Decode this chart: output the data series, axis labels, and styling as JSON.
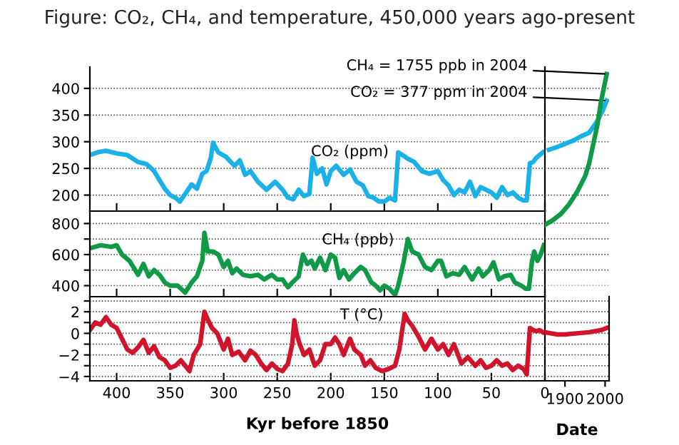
{
  "chart_data": [
    {
      "type": "line",
      "title": "Figure: CO₂, CH₄, and temperature, 450,000 years ago-present",
      "annotations": [
        "CO₂ (ppm)"
      ],
      "x": [
        425,
        418,
        410,
        400,
        390,
        380,
        372,
        365,
        360,
        355,
        350,
        345,
        341,
        335,
        330,
        325,
        320,
        316,
        312,
        310,
        305,
        298,
        290,
        285,
        280,
        275,
        268,
        260,
        252,
        245,
        240,
        235,
        230,
        225,
        220,
        217,
        213,
        208,
        204,
        200,
        195,
        188,
        182,
        176,
        170,
        165,
        160,
        155,
        150,
        145,
        140,
        137,
        133,
        128,
        122,
        115,
        108,
        100,
        95,
        90,
        85,
        80,
        75,
        70,
        65,
        60,
        55,
        50,
        45,
        40,
        35,
        30,
        25,
        20,
        17,
        14,
        11,
        8,
        5,
        2
      ],
      "series": [
        {
          "color": "#1ab0e8",
          "values": [
            275,
            280,
            283,
            278,
            275,
            262,
            258,
            245,
            228,
            212,
            200,
            195,
            188,
            205,
            220,
            212,
            240,
            245,
            270,
            298,
            280,
            272,
            255,
            265,
            238,
            245,
            225,
            210,
            225,
            210,
            195,
            192,
            210,
            198,
            202,
            270,
            240,
            250,
            220,
            245,
            255,
            238,
            248,
            225,
            218,
            198,
            195,
            188,
            188,
            195,
            190,
            280,
            275,
            268,
            262,
            245,
            240,
            245,
            228,
            218,
            200,
            210,
            205,
            225,
            198,
            215,
            210,
            205,
            195,
            215,
            200,
            205,
            195,
            190,
            190,
            260,
            262,
            270,
            275,
            280
          ]
        }
      ],
      "xlim": [
        425,
        0
      ],
      "xticks": [
        {
          "value": 400,
          "label": null
        },
        {
          "value": 350,
          "label": null
        },
        {
          "value": 300,
          "label": null
        },
        {
          "value": 250,
          "label": null
        },
        {
          "value": 200,
          "label": null
        },
        {
          "value": 150,
          "label": null
        },
        {
          "value": 100,
          "label": null
        },
        {
          "value": 50,
          "label": null
        },
        {
          "value": 0,
          "label": null
        }
      ],
      "ylim": [
        170,
        440
      ],
      "yticks": [
        200,
        250,
        300,
        350,
        400
      ],
      "grid": "y",
      "tick_labels": "y"
    },
    {
      "type": "line",
      "x": [
        1860,
        1880,
        1900,
        1920,
        1940,
        1960,
        1980,
        1995,
        2004
      ],
      "series": [
        {
          "color": "#1ab0e8",
          "values": [
            285,
            290,
            296,
            302,
            310,
            317,
            338,
            360,
            377
          ]
        }
      ],
      "annotations": [
        {
          "text": "CO₂ = 377 ppm in 2004",
          "x": 2004,
          "y": 377
        }
      ],
      "xlim": [
        1850,
        2010
      ],
      "ylim": [
        170,
        440
      ],
      "yticks": [
        200,
        250,
        300,
        350,
        400
      ],
      "grid": "y",
      "tick_labels": false
    },
    {
      "type": "line",
      "annotations": [
        "CH₄ (ppb)"
      ],
      "x": [
        425,
        415,
        405,
        400,
        395,
        388,
        380,
        375,
        370,
        365,
        360,
        355,
        350,
        343,
        336,
        330,
        325,
        322,
        320,
        318,
        315,
        310,
        305,
        300,
        296,
        292,
        288,
        282,
        275,
        268,
        262,
        255,
        250,
        245,
        240,
        236,
        230,
        226,
        222,
        218,
        215,
        210,
        205,
        200,
        196,
        192,
        188,
        183,
        178,
        172,
        168,
        162,
        158,
        154,
        150,
        145,
        140,
        137,
        132,
        128,
        124,
        118,
        112,
        106,
        100,
        97,
        92,
        86,
        80,
        75,
        68,
        62,
        58,
        52,
        48,
        43,
        38,
        32,
        28,
        22,
        18,
        15,
        12,
        10,
        7,
        4,
        1
      ],
      "series": [
        {
          "color": "#0f9a48",
          "values": [
            640,
            660,
            650,
            660,
            600,
            560,
            470,
            540,
            460,
            500,
            470,
            420,
            400,
            400,
            355,
            420,
            460,
            520,
            560,
            740,
            620,
            620,
            600,
            520,
            560,
            480,
            510,
            470,
            460,
            470,
            440,
            470,
            440,
            440,
            390,
            420,
            460,
            600,
            540,
            560,
            510,
            580,
            500,
            600,
            580,
            450,
            500,
            440,
            480,
            520,
            500,
            420,
            400,
            370,
            400,
            380,
            340,
            400,
            550,
            700,
            620,
            600,
            520,
            500,
            560,
            560,
            460,
            480,
            470,
            520,
            440,
            510,
            460,
            500,
            550,
            440,
            460,
            470,
            420,
            400,
            380,
            380,
            560,
            620,
            560,
            600,
            660
          ]
        }
      ],
      "xlim": [
        425,
        0
      ],
      "xticks": [
        {
          "value": 400,
          "label": null
        },
        {
          "value": 350,
          "label": null
        },
        {
          "value": 300,
          "label": null
        },
        {
          "value": 250,
          "label": null
        },
        {
          "value": 200,
          "label": null
        },
        {
          "value": 150,
          "label": null
        },
        {
          "value": 100,
          "label": null
        },
        {
          "value": 50,
          "label": null
        },
        {
          "value": 0,
          "label": null
        }
      ],
      "ylim": [
        329,
        880
      ],
      "yticks": [
        400,
        {
          "value": 500,
          "label": null
        },
        600,
        {
          "value": 700,
          "label": null
        },
        800
      ],
      "grid": "y",
      "tick_labels": "y"
    },
    {
      "type": "line",
      "x": [
        1850,
        1870,
        1890,
        1910,
        1930,
        1950,
        1960,
        1970,
        1980,
        1990,
        2004
      ],
      "series": [
        {
          "color": "#0f9a48",
          "values": [
            790,
            820,
            860,
            920,
            1000,
            1100,
            1180,
            1300,
            1420,
            1580,
            1755
          ]
        }
      ],
      "annotations": [
        {
          "text": "CH₄ = 1755 ppb in 2004",
          "x": 2004,
          "y": 1755
        }
      ],
      "xlim": [
        1850,
        2010
      ],
      "ylim": [
        400,
        1800
      ],
      "yticks": [
        400,
        500,
        600,
        700,
        800
      ],
      "grid": "y",
      "tick_labels": false
    },
    {
      "type": "line",
      "annotations": [
        "T (°C)"
      ],
      "xlabel": "Kyr before 1850",
      "x": [
        425,
        420,
        415,
        410,
        405,
        400,
        395,
        390,
        385,
        380,
        375,
        370,
        365,
        360,
        355,
        350,
        345,
        340,
        336,
        332,
        328,
        322,
        318,
        315,
        311,
        306,
        300,
        296,
        292,
        286,
        280,
        275,
        270,
        265,
        260,
        255,
        250,
        245,
        240,
        236,
        234,
        232,
        229,
        225,
        220,
        215,
        210,
        205,
        200,
        196,
        192,
        188,
        182,
        178,
        172,
        168,
        163,
        158,
        152,
        146,
        140,
        136,
        131,
        128,
        124,
        118,
        112,
        106,
        100,
        95,
        90,
        85,
        78,
        72,
        65,
        60,
        55,
        50,
        45,
        40,
        35,
        30,
        25,
        20,
        17,
        14,
        11,
        8,
        5,
        2
      ],
      "series": [
        {
          "color": "#d0142c",
          "values": [
            0.3,
            1,
            0.8,
            1.5,
            0.8,
            0.5,
            -0.5,
            -1.5,
            -1.8,
            -1.3,
            -0.6,
            -1.8,
            -1.2,
            -2.2,
            -2.5,
            -3.2,
            -3.0,
            -2.5,
            -3.0,
            -3.5,
            -2.0,
            -1.0,
            2.0,
            1.3,
            0.5,
            0,
            -1.5,
            -0.5,
            -2.0,
            -1.7,
            -2.5,
            -1.6,
            -2.0,
            -2.8,
            -3.4,
            -2.8,
            -3.3,
            -3.5,
            -2.8,
            -1.0,
            1.2,
            0,
            -1,
            -2,
            -1.5,
            -3,
            -2.5,
            -1.0,
            -1.0,
            -0.4,
            -1.0,
            -2.0,
            -0.5,
            -1.5,
            -2.0,
            -3.0,
            -2.5,
            -3.2,
            -3.5,
            -3.3,
            -3.0,
            -1.5,
            1.8,
            1.2,
            0.7,
            -0.3,
            -1.5,
            -0.5,
            -1.5,
            -1.0,
            -2.0,
            -1.0,
            -2.8,
            -2.2,
            -3.0,
            -2.5,
            -3.2,
            -3.0,
            -2.5,
            -3.0,
            -2.8,
            -3.4,
            -3.0,
            -3.3,
            -3.8,
            0.5,
            0.3,
            0.2,
            0.3,
            0.1
          ]
        }
      ],
      "xlim": [
        425,
        0
      ],
      "xticks": [
        400,
        350,
        300,
        250,
        200,
        150,
        100,
        50,
        0
      ],
      "ylim": [
        -4.4,
        3.4
      ],
      "yticks": [
        {
          "value": -4,
          "label": "−4"
        },
        {
          "value": -3,
          "label": null
        },
        {
          "value": -2,
          "label": "−2"
        },
        {
          "value": -1,
          "label": null
        },
        0,
        {
          "value": 1,
          "label": null
        },
        2,
        {
          "value": 3,
          "label": null
        }
      ],
      "grid": "y"
    },
    {
      "type": "line",
      "xlabel": "Date",
      "x": [
        1850,
        1880,
        1900,
        1930,
        1960,
        1990,
        2004
      ],
      "series": [
        {
          "color": "#d0142c",
          "values": [
            0.1,
            -0.1,
            -0.1,
            0,
            0.1,
            0.3,
            0.5
          ]
        }
      ],
      "xlim": [
        1850,
        2010
      ],
      "xticks": [
        1900,
        2000
      ],
      "ylim": [
        -4.4,
        3.4
      ],
      "yticks": [
        -4,
        -3,
        -2,
        -1,
        0,
        1,
        2,
        3
      ],
      "grid": "y",
      "tick_labels": "x"
    }
  ]
}
